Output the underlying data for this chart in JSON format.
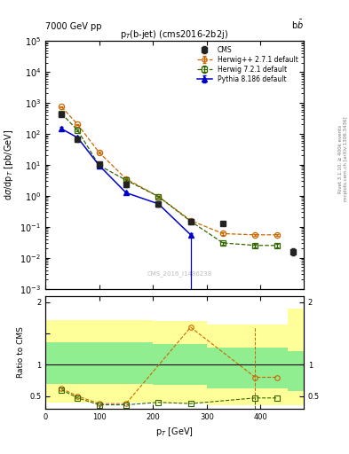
{
  "title_main": "p$_T$(b-jet) (cms2016-2b2j)",
  "header_left": "7000 GeV pp",
  "header_right": "b$\\bar{b}$",
  "xlabel": "p$_T$ [GeV]",
  "ylabel_main": "d$\\sigma$/dp$_T$ [pb/GeV]",
  "ylabel_ratio": "Ratio to CMS",
  "watermark": "CMS_2016_I1486238",
  "right_label_top": "Rivet 3.1.10, ≥ 400k events",
  "right_label_bot": "mcplots.cern.ch [arXiv:1306.3436]",
  "cms_x": [
    30,
    60,
    100,
    150,
    210,
    270,
    330,
    460
  ],
  "cms_y": [
    430,
    68,
    10.5,
    2.3,
    0.56,
    0.15,
    0.13,
    0.016
  ],
  "cms_yerr_lo": [
    70,
    12,
    1.8,
    0.4,
    0.1,
    0.025,
    0.02,
    0.004
  ],
  "cms_yerr_hi": [
    70,
    12,
    1.8,
    0.4,
    0.1,
    0.025,
    0.02,
    0.004
  ],
  "hw_x": [
    30,
    60,
    100,
    150,
    210,
    270,
    330,
    390,
    430
  ],
  "hw_y": [
    750,
    200,
    25,
    3.5,
    0.95,
    0.16,
    0.06,
    0.055,
    0.055
  ],
  "hw_ye": [
    40,
    12,
    1.5,
    0.25,
    0.06,
    0.012,
    0.004,
    0.004,
    0.004
  ],
  "hw72_x": [
    30,
    60,
    100,
    150,
    210,
    270,
    330,
    390,
    430
  ],
  "hw72_y": [
    450,
    130,
    9.5,
    3.2,
    0.95,
    0.15,
    0.03,
    0.025,
    0.025
  ],
  "hw72_ye": [
    25,
    9,
    0.9,
    0.25,
    0.06,
    0.012,
    0.003,
    0.003,
    0.003
  ],
  "py_x": [
    30,
    60,
    100,
    150,
    210,
    270
  ],
  "py_y": [
    145,
    75,
    9.5,
    1.25,
    0.55,
    0.055
  ],
  "py_ye": [
    18,
    9,
    1.1,
    0.12,
    0.055,
    0.008
  ],
  "py_drop_x": 270,
  "py_drop_y_top": 0.055,
  "py_drop_y_bot": 0.0008,
  "ratio_hw_x": [
    30,
    60,
    100,
    150,
    270,
    390,
    430
  ],
  "ratio_hw_y": [
    0.62,
    0.5,
    0.38,
    0.38,
    1.6,
    0.8,
    0.8
  ],
  "ratio_hw72_x": [
    30,
    60,
    100,
    150,
    210,
    270,
    390,
    430
  ],
  "ratio_hw72_y": [
    0.6,
    0.47,
    0.36,
    0.36,
    0.4,
    0.38,
    0.47,
    0.47
  ],
  "band_edges": [
    0,
    100,
    200,
    300,
    450,
    500
  ],
  "band_yellow_lo": [
    0.4,
    0.4,
    0.38,
    0.36,
    0.36,
    0.36
  ],
  "band_yellow_hi": [
    1.72,
    1.72,
    1.7,
    1.65,
    1.9,
    1.9
  ],
  "band_green_lo": [
    0.7,
    0.7,
    0.68,
    0.63,
    0.58,
    0.58
  ],
  "band_green_hi": [
    1.36,
    1.36,
    1.33,
    1.28,
    1.22,
    1.22
  ],
  "colors": {
    "cms": "#222222",
    "herwig": "#cc6600",
    "herwig72": "#336600",
    "pythia": "#0000cc",
    "band_green": "#90ee90",
    "band_yellow": "#ffff99"
  },
  "ylim_main": [
    0.001,
    100000.0
  ],
  "ylim_ratio": [
    0.3,
    2.1
  ],
  "xlim": [
    0,
    480
  ]
}
